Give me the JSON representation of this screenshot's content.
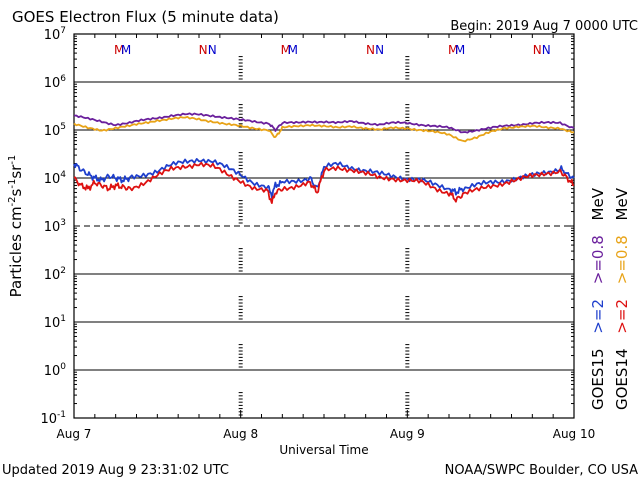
{
  "header": {
    "title": "GOES Electron Flux (5 minute data)",
    "begin": "Begin: 2019 Aug 7 0000 UTC"
  },
  "footer": {
    "updated": "Updated 2019 Aug  9 23:31:02 UTC",
    "source": "NOAA/SWPC Boulder, CO USA"
  },
  "markers": {
    "m_label": "MM",
    "n_label": "NN",
    "m_color": "#cc0000",
    "m_color2": "#0000cc"
  },
  "legend": {
    "col1": [
      {
        "text": "GOES15",
        "color": "#000000"
      },
      {
        "text": ">=2",
        "color": "#1f3fcc"
      },
      {
        "text": ">=0.8",
        "color": "#6a1f9c"
      },
      {
        "text": "MeV",
        "color": "#000000"
      }
    ],
    "col2": [
      {
        "text": "GOES14",
        "color": "#000000"
      },
      {
        "text": ">=2",
        "color": "#dd1111"
      },
      {
        "text": ">=0.8",
        "color": "#e8a317"
      },
      {
        "text": "MeV",
        "color": "#000000"
      }
    ]
  },
  "chart_data": {
    "type": "line",
    "title": "GOES Electron Flux (5 minute data)",
    "xlabel": "Universal Time",
    "ylabel": "Particles cm^-2 s^-1 sr^-1",
    "yscale": "log",
    "ylim": [
      0.1,
      10000000
    ],
    "xlim": [
      0,
      72
    ],
    "x_ticks": [
      {
        "x": 0,
        "label": "Aug 7"
      },
      {
        "x": 24,
        "label": "Aug 8"
      },
      {
        "x": 48,
        "label": "Aug 9"
      },
      {
        "x": 72,
        "label": "Aug 10"
      }
    ],
    "y_ticks": [
      {
        "exp": "-1",
        "value": 0.1
      },
      {
        "exp": "0",
        "value": 1
      },
      {
        "exp": "1",
        "value": 10
      },
      {
        "exp": "2",
        "value": 100
      },
      {
        "exp": "3",
        "value": 1000
      },
      {
        "exp": "4",
        "value": 10000
      },
      {
        "exp": "5",
        "value": 100000
      },
      {
        "exp": "6",
        "value": 1000000
      },
      {
        "exp": "7",
        "value": 10000000
      }
    ],
    "threshold": {
      "value": 1000,
      "style": "dashed"
    },
    "series": [
      {
        "name": "GOES15 >=0.8 MeV",
        "color": "#6a1f9c",
        "x": [
          0,
          2,
          4,
          6,
          8,
          10,
          12,
          14,
          16,
          18,
          20,
          22,
          24,
          26,
          28,
          29,
          30,
          32,
          34,
          36,
          38,
          40,
          42,
          44,
          46,
          48,
          50,
          52,
          54,
          56,
          58,
          60,
          62,
          64,
          66,
          68,
          70,
          72
        ],
        "y": [
          200000,
          170000,
          150000,
          130000,
          140000,
          160000,
          180000,
          200000,
          210000,
          210000,
          200000,
          180000,
          160000,
          150000,
          140000,
          100000,
          140000,
          140000,
          150000,
          150000,
          140000,
          150000,
          140000,
          130000,
          140000,
          140000,
          130000,
          120000,
          110000,
          90000,
          100000,
          110000,
          120000,
          130000,
          140000,
          140000,
          140000,
          110000
        ]
      },
      {
        "name": "GOES14 >=0.8 MeV",
        "color": "#e8a317",
        "x": [
          0,
          2,
          4,
          6,
          8,
          10,
          12,
          14,
          16,
          18,
          20,
          22,
          24,
          26,
          28,
          29,
          30,
          32,
          34,
          36,
          38,
          40,
          42,
          44,
          46,
          48,
          50,
          52,
          54,
          56,
          58,
          60,
          62,
          64,
          66,
          68,
          70,
          72
        ],
        "y": [
          130000,
          110000,
          100000,
          110000,
          120000,
          140000,
          160000,
          170000,
          180000,
          170000,
          150000,
          130000,
          120000,
          110000,
          100000,
          70000,
          110000,
          120000,
          130000,
          120000,
          110000,
          120000,
          110000,
          100000,
          110000,
          110000,
          100000,
          90000,
          80000,
          60000,
          70000,
          90000,
          110000,
          120000,
          120000,
          110000,
          110000,
          90000
        ]
      },
      {
        "name": "GOES15 >=2 MeV",
        "color": "#1f3fcc",
        "x": [
          0,
          1,
          2,
          3,
          4,
          5,
          6,
          7,
          8,
          10,
          12,
          14,
          16,
          18,
          20,
          22,
          24,
          26,
          28,
          28.5,
          29,
          30,
          32,
          34,
          35,
          36,
          38,
          40,
          42,
          44,
          46,
          48,
          50,
          52,
          54,
          55,
          56,
          58,
          60,
          62,
          64,
          66,
          68,
          70,
          71,
          72
        ],
        "y": [
          20000,
          15000,
          12000,
          10000,
          9000,
          11000,
          10000,
          9000,
          10000,
          12000,
          14000,
          18000,
          22000,
          25000,
          22000,
          16000,
          12000,
          8000,
          6000,
          4500,
          7000,
          8000,
          9000,
          10000,
          6000,
          16000,
          20000,
          17000,
          14000,
          12000,
          11000,
          10000,
          9000,
          7000,
          6000,
          5000,
          6000,
          7000,
          8000,
          9000,
          10000,
          11000,
          13000,
          16000,
          12000,
          10000
        ]
      },
      {
        "name": "GOES14 >=2 MeV",
        "color": "#dd1111",
        "x": [
          0,
          1,
          2,
          3,
          4,
          5,
          6,
          7,
          8,
          10,
          12,
          14,
          16,
          18,
          20,
          22,
          24,
          26,
          28,
          28.5,
          29,
          30,
          32,
          34,
          35,
          36,
          38,
          40,
          42,
          44,
          46,
          48,
          50,
          52,
          54,
          55,
          56,
          58,
          60,
          62,
          64,
          66,
          68,
          70,
          71,
          72
        ],
        "y": [
          10000,
          7000,
          6000,
          8000,
          7000,
          6000,
          7000,
          6500,
          6000,
          8000,
          11000,
          15000,
          18000,
          20000,
          17000,
          12000,
          9000,
          6000,
          5000,
          3000,
          5000,
          6000,
          7000,
          8000,
          5000,
          14000,
          17000,
          15000,
          12000,
          10000,
          10000,
          9000,
          8000,
          6000,
          5000,
          3500,
          4500,
          5500,
          7000,
          8000,
          9000,
          11000,
          13000,
          14000,
          10000,
          7000
        ]
      }
    ],
    "events": [
      {
        "x": 6.5,
        "label": "M",
        "color": "#cc0000"
      },
      {
        "x": 7.5,
        "label": "M",
        "color": "#0000cc"
      },
      {
        "x": 18.6,
        "label": "N",
        "color": "#cc0000"
      },
      {
        "x": 19.9,
        "label": "N",
        "color": "#0000cc"
      },
      {
        "x": 30.5,
        "label": "M",
        "color": "#cc0000"
      },
      {
        "x": 31.5,
        "label": "M",
        "color": "#0000cc"
      },
      {
        "x": 42.7,
        "label": "N",
        "color": "#cc0000"
      },
      {
        "x": 44,
        "label": "N",
        "color": "#0000cc"
      },
      {
        "x": 54.6,
        "label": "M",
        "color": "#cc0000"
      },
      {
        "x": 55.6,
        "label": "M",
        "color": "#0000cc"
      },
      {
        "x": 66.7,
        "label": "N",
        "color": "#cc0000"
      },
      {
        "x": 68,
        "label": "N",
        "color": "#0000cc"
      }
    ]
  }
}
